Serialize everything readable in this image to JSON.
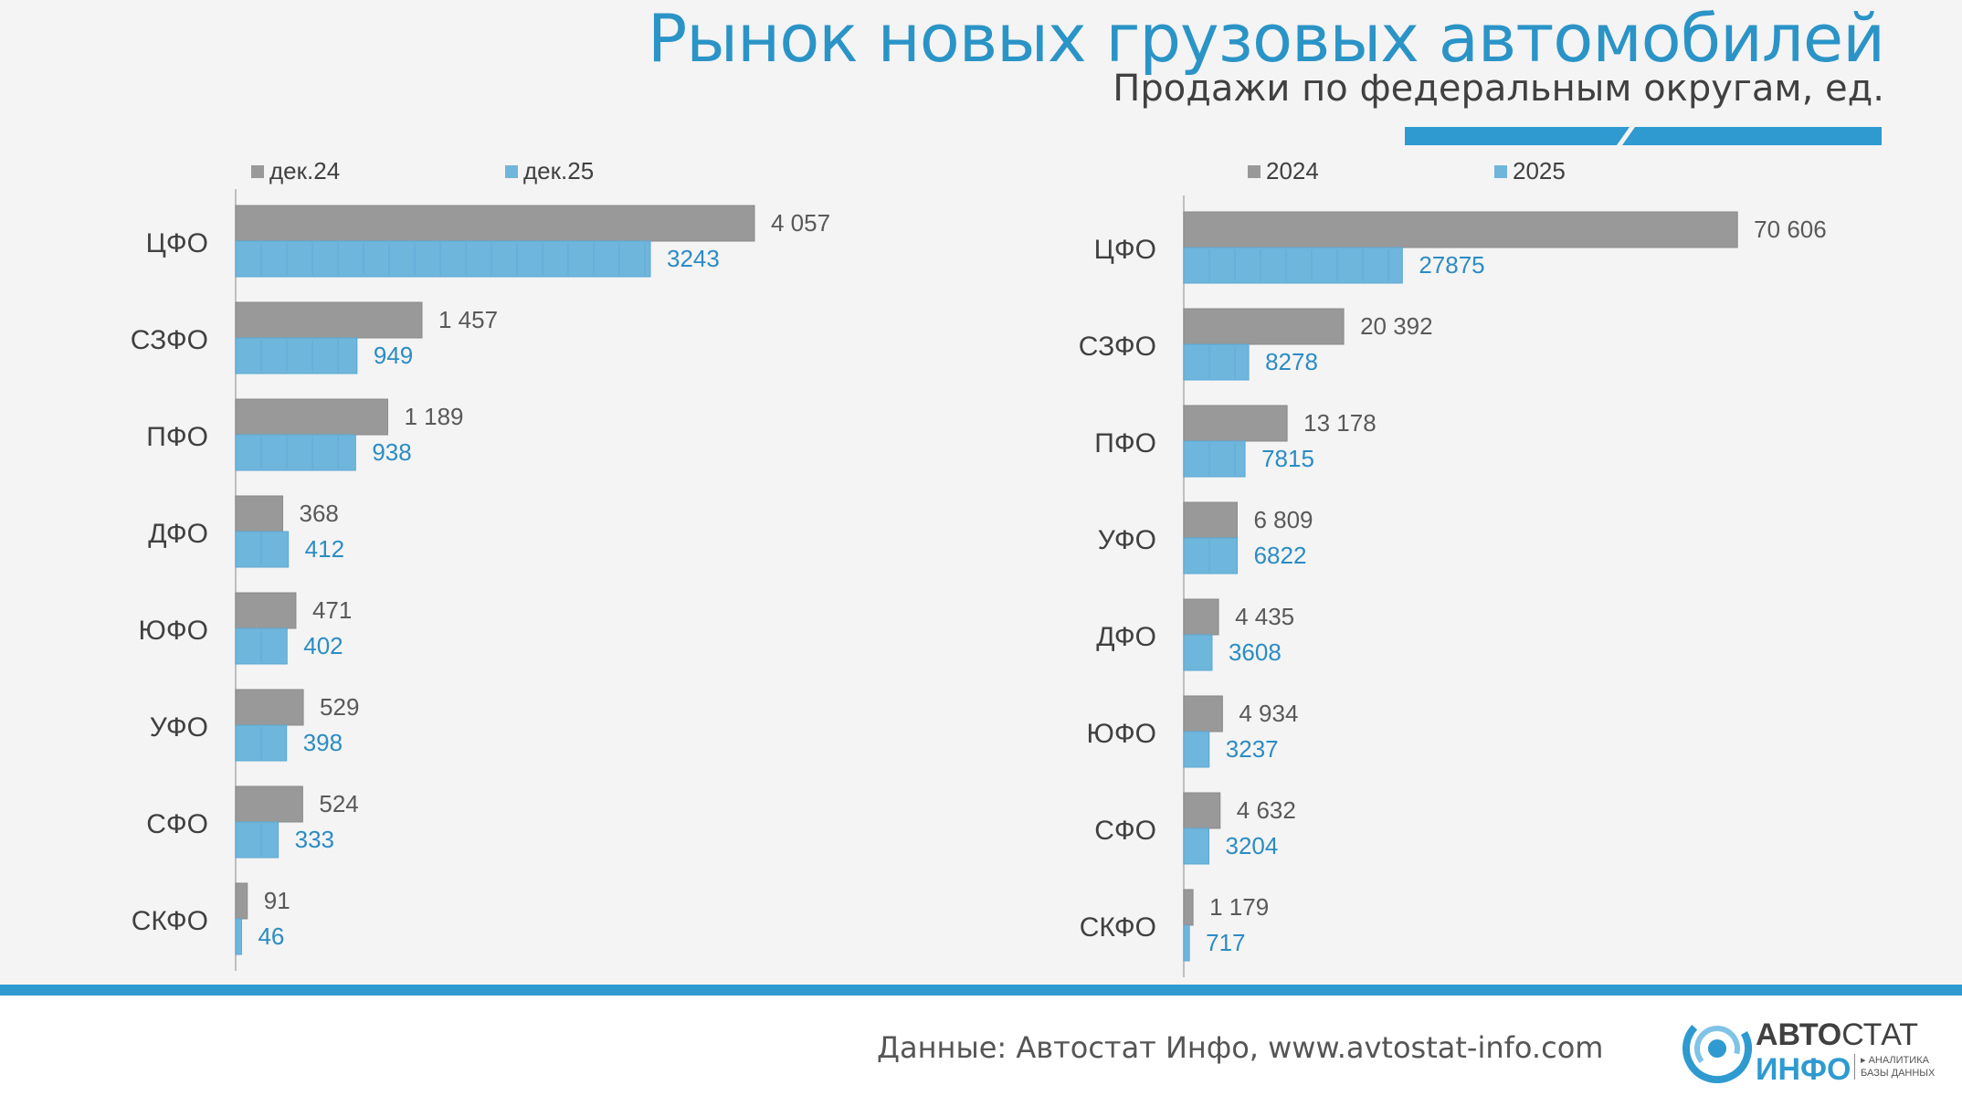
{
  "title": "Рынок новых грузовых автомобилей",
  "subtitle": "Продажи по федеральным округам, ед.",
  "colors": {
    "prev": "#999999",
    "curr": "#6fb6dc",
    "accent": "#2e9ad0",
    "label_curr": "#2b8cc4",
    "label_prev": "#595959"
  },
  "chart_data": [
    {
      "type": "bar",
      "orientation": "horizontal",
      "categories": [
        "ЦФО",
        "СЗФО",
        "ПФО",
        "ДФО",
        "ЮФО",
        "УФО",
        "СФО",
        "СКФО"
      ],
      "series": [
        {
          "name": "дек.24",
          "values": [
            4057,
            1457,
            1189,
            368,
            471,
            529,
            524,
            91
          ],
          "labels": [
            "4 057",
            "1 457",
            "1 189",
            "368",
            "471",
            "529",
            "524",
            "91"
          ]
        },
        {
          "name": "дек.25",
          "values": [
            3243,
            949,
            938,
            412,
            402,
            398,
            333,
            46
          ],
          "labels": [
            "3243",
            "949",
            "938",
            "412",
            "402",
            "398",
            "333",
            "46"
          ]
        }
      ],
      "xlim": [
        0,
        5000
      ],
      "legend": "top-left",
      "grid": false
    },
    {
      "type": "bar",
      "orientation": "horizontal",
      "categories": [
        "ЦФО",
        "СЗФО",
        "ПФО",
        "УФО",
        "ДФО",
        "ЮФО",
        "СФО",
        "СКФО"
      ],
      "series": [
        {
          "name": "2024",
          "values": [
            70606,
            20392,
            13178,
            6809,
            4435,
            4934,
            4632,
            1179
          ],
          "labels": [
            "70 606",
            "20 392",
            "13 178",
            "6 809",
            "4 435",
            "4 934",
            "4 632",
            "1 179"
          ]
        },
        {
          "name": "2025",
          "values": [
            27875,
            8278,
            7815,
            6822,
            3608,
            3237,
            3204,
            717
          ],
          "labels": [
            "27875",
            "8278",
            "7815",
            "6822",
            "3608",
            "3237",
            "3204",
            "717"
          ]
        }
      ],
      "xlim": [
        0,
        82000
      ],
      "legend": "top-left",
      "grid": false
    }
  ],
  "footer": {
    "source": "Данные: Автостат Инфо, www.avtostat-info.com",
    "logo_top_bold": "АВТО",
    "logo_top_regular": "СТАТ",
    "logo_bottom": "ИНФО",
    "logo_tagline_1": "▸ АНАЛИТИКА",
    "logo_tagline_2": "БАЗЫ ДАННЫХ"
  }
}
